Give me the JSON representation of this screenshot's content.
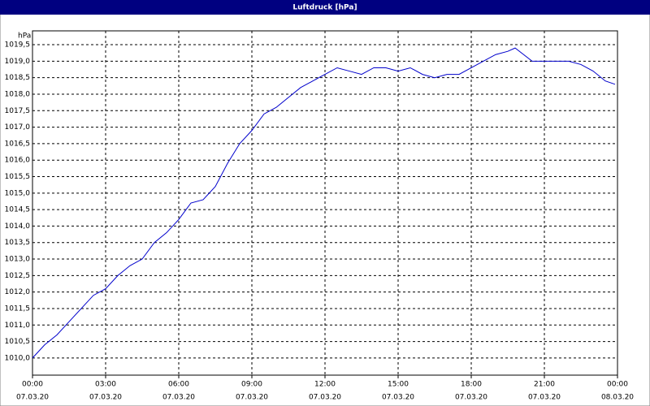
{
  "chart_data": {
    "type": "line",
    "title": "Luftdruck [hPa]",
    "y_unit": "hPa",
    "x": [
      0,
      0.5,
      1,
      1.5,
      2,
      2.5,
      3,
      3.5,
      4,
      4.5,
      5,
      5.5,
      6,
      6.5,
      7,
      7.5,
      8,
      8.5,
      9,
      9.5,
      10,
      10.5,
      11,
      11.5,
      12,
      12.5,
      13,
      13.5,
      14,
      14.5,
      15,
      15.5,
      16,
      16.5,
      17,
      17.5,
      18,
      18.5,
      19,
      19.5,
      19.8,
      20.5,
      21,
      22,
      22.5,
      23,
      23.5,
      23.9
    ],
    "series": [
      {
        "name": "Luftdruck",
        "color": "#0000cc",
        "values": [
          1010.0,
          1010.4,
          1010.7,
          1011.1,
          1011.5,
          1011.9,
          1012.1,
          1012.5,
          1012.8,
          1013.0,
          1013.5,
          1013.8,
          1014.2,
          1014.7,
          1014.8,
          1015.2,
          1015.9,
          1016.5,
          1016.9,
          1017.4,
          1017.6,
          1017.9,
          1018.2,
          1018.4,
          1018.6,
          1018.8,
          1018.7,
          1018.6,
          1018.8,
          1018.8,
          1018.7,
          1018.8,
          1018.6,
          1018.5,
          1018.6,
          1018.6,
          1018.8,
          1019.0,
          1019.2,
          1019.3,
          1019.4,
          1019.0,
          1019.0,
          1019.0,
          1018.9,
          1018.7,
          1018.4,
          1018.3
        ]
      }
    ],
    "xlim": [
      0,
      24
    ],
    "ylim": [
      1009.48,
      1019.92
    ],
    "xticks": [
      {
        "value": 0,
        "label": "00:00",
        "date": "07.03.20"
      },
      {
        "value": 3,
        "label": "03:00",
        "date": "07.03.20"
      },
      {
        "value": 6,
        "label": "06:00",
        "date": "07.03.20"
      },
      {
        "value": 9,
        "label": "09:00",
        "date": "07.03.20"
      },
      {
        "value": 12,
        "label": "12:00",
        "date": "07.03.20"
      },
      {
        "value": 15,
        "label": "15:00",
        "date": "07.03.20"
      },
      {
        "value": 18,
        "label": "18:00",
        "date": "07.03.20"
      },
      {
        "value": 21,
        "label": "21:00",
        "date": "07.03.20"
      },
      {
        "value": 24,
        "label": "00:00",
        "date": "08.03.20"
      }
    ],
    "yticks": [
      {
        "value": 1010,
        "label": "1010,0"
      },
      {
        "value": 1010.5,
        "label": "1010,5"
      },
      {
        "value": 1011,
        "label": "1011,0"
      },
      {
        "value": 1011.5,
        "label": "1011,5"
      },
      {
        "value": 1012,
        "label": "1012,0"
      },
      {
        "value": 1012.5,
        "label": "1012,5"
      },
      {
        "value": 1013,
        "label": "1013,0"
      },
      {
        "value": 1013.5,
        "label": "1013,5"
      },
      {
        "value": 1014,
        "label": "1014,0"
      },
      {
        "value": 1014.5,
        "label": "1014,5"
      },
      {
        "value": 1015,
        "label": "1015,0"
      },
      {
        "value": 1015.5,
        "label": "1015,5"
      },
      {
        "value": 1016,
        "label": "1016,0"
      },
      {
        "value": 1016.5,
        "label": "1016,5"
      },
      {
        "value": 1017,
        "label": "1017,0"
      },
      {
        "value": 1017.5,
        "label": "1017,5"
      },
      {
        "value": 1018,
        "label": "1018,0"
      },
      {
        "value": 1018.5,
        "label": "1018,5"
      },
      {
        "value": 1019,
        "label": "1019,0"
      },
      {
        "value": 1019.5,
        "label": "1019,5"
      }
    ],
    "grid": true
  }
}
